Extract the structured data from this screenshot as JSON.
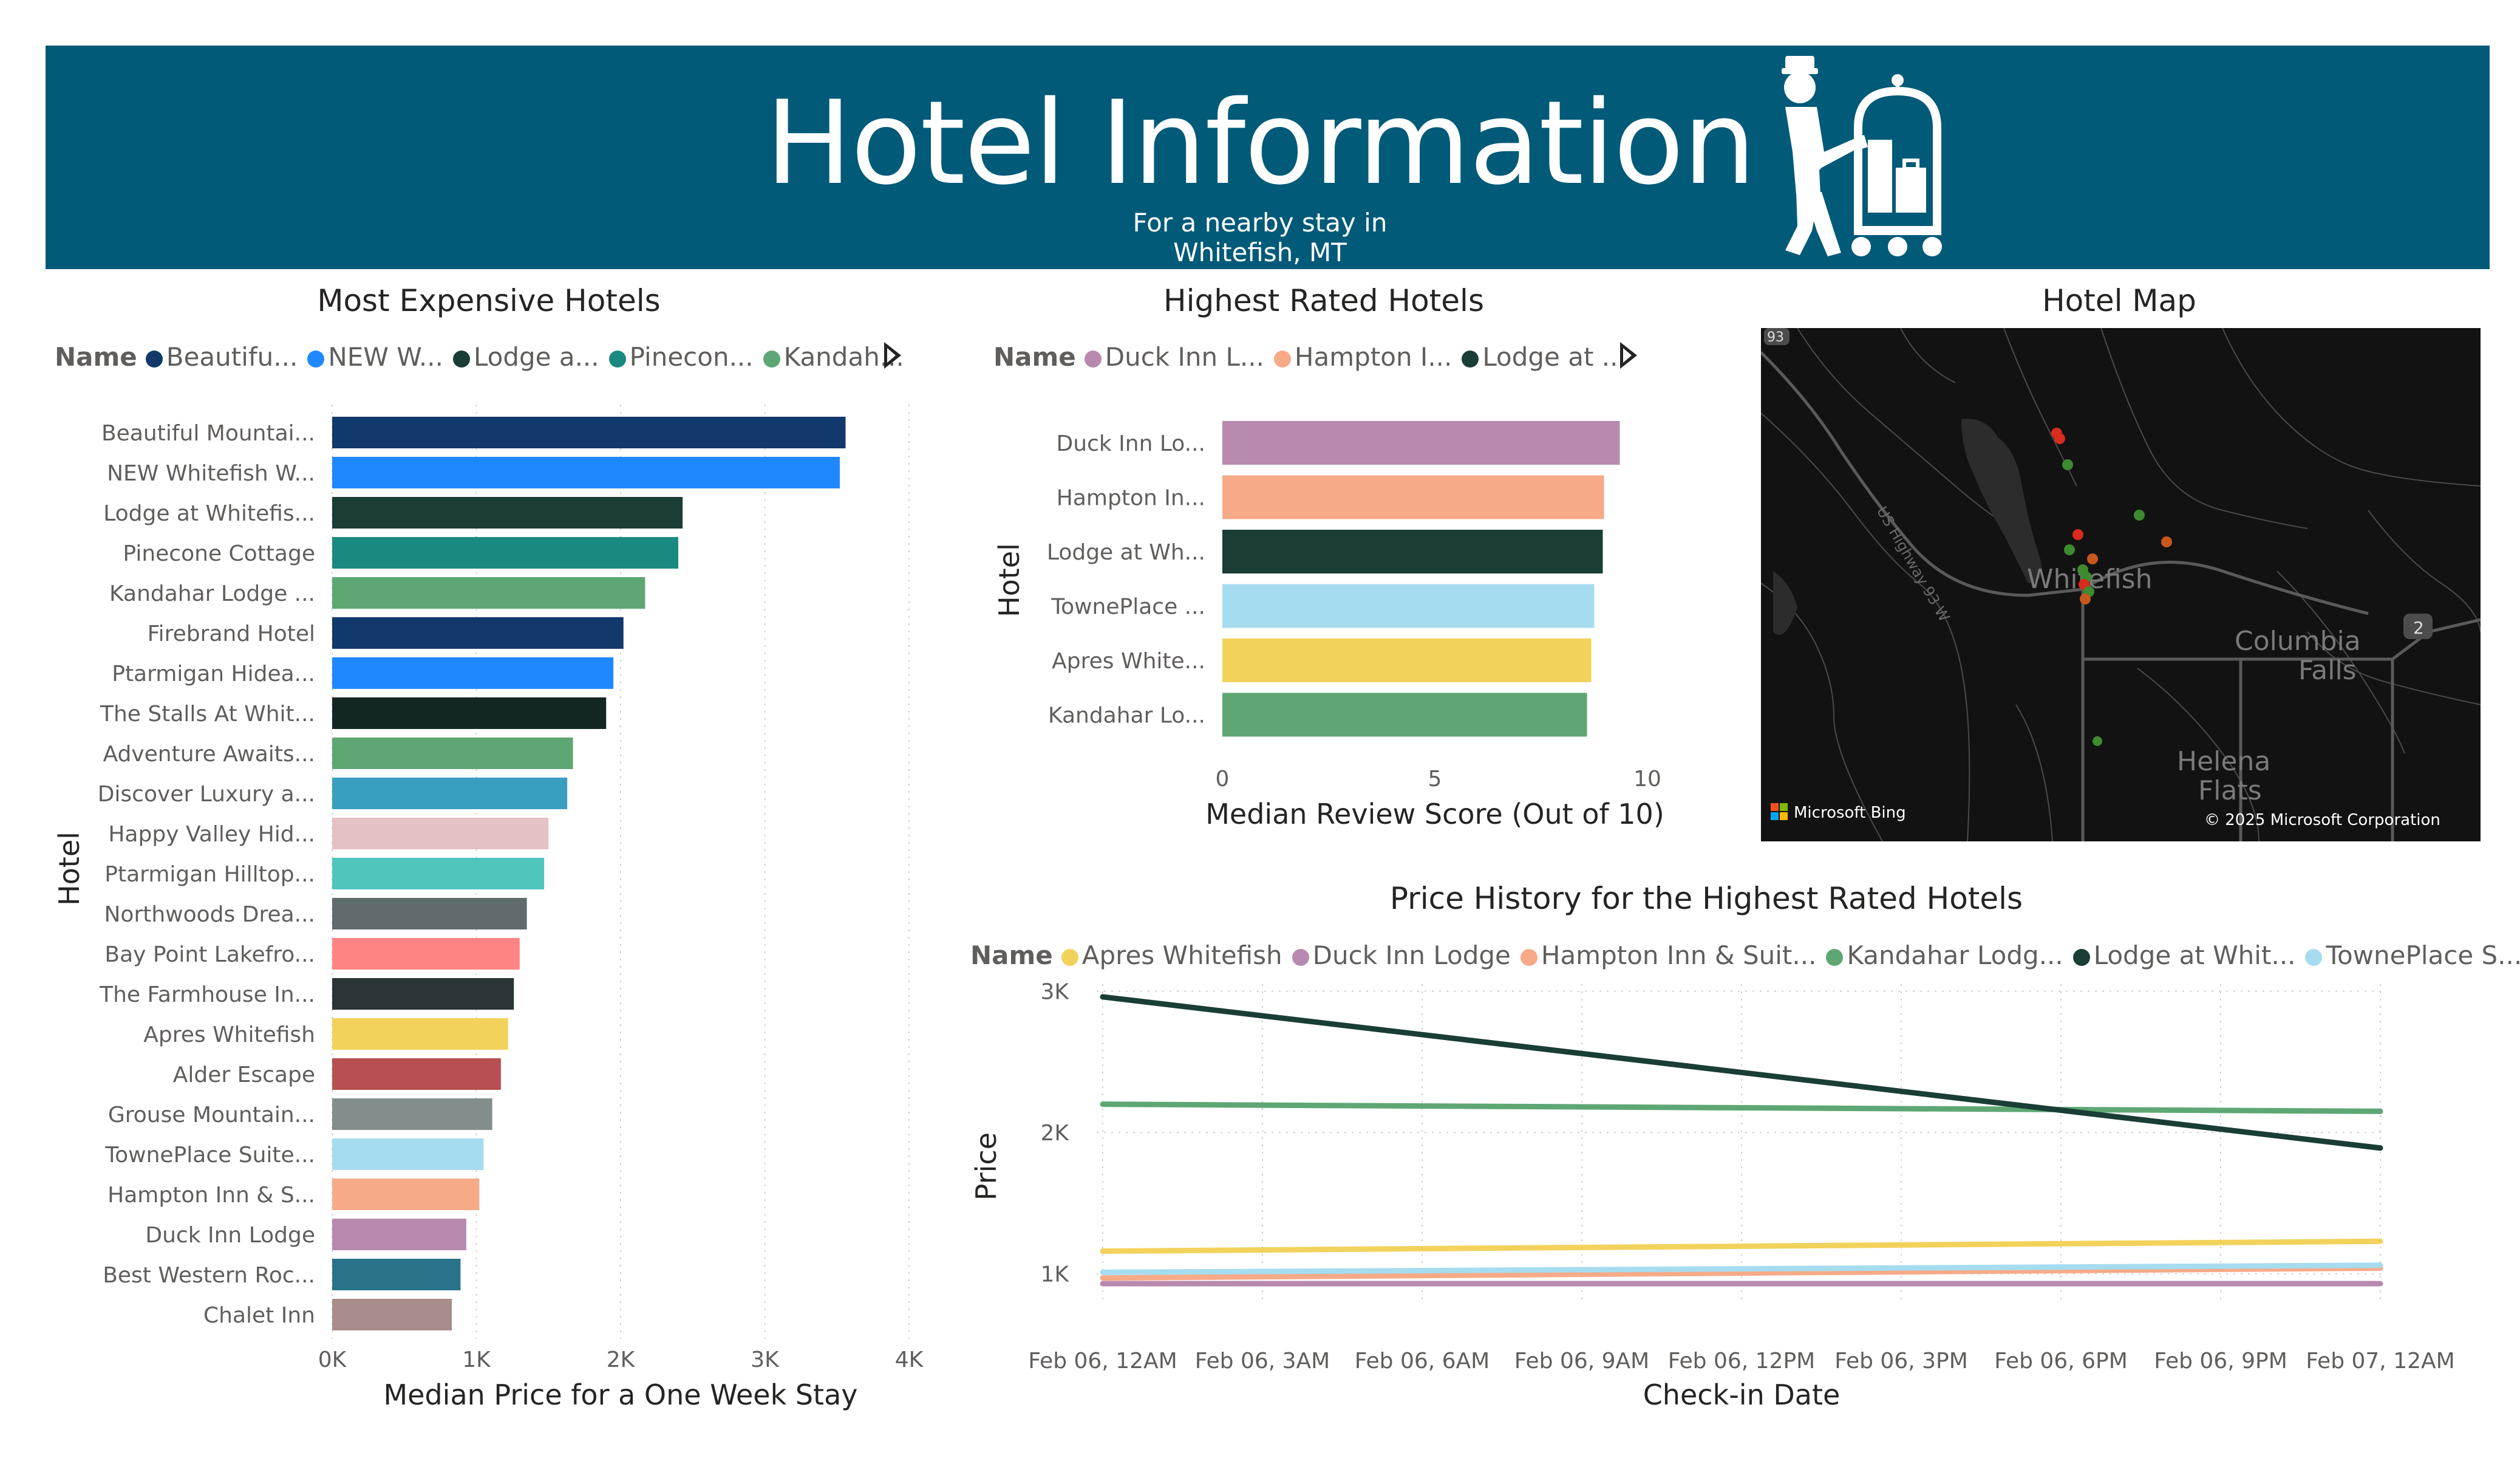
{
  "header": {
    "title": "Hotel Information",
    "subtitle": "For a nearby stay in Whitefish, MT",
    "background_color": "#005a78",
    "icon": "bellhop-luggage-cart-icon"
  },
  "expensive": {
    "title": "Most Expensive Hotels",
    "legend_label": "Name",
    "legend": [
      {
        "label": "Beautifu...",
        "color": "#12396b"
      },
      {
        "label": "NEW W...",
        "color": "#2088ff"
      },
      {
        "label": "Lodge a...",
        "color": "#1a3d35"
      },
      {
        "label": "Pinecon...",
        "color": "#1a8a80"
      },
      {
        "label": "Kandah...",
        "color": "#5ea774"
      }
    ]
  },
  "rated": {
    "title": "Highest Rated Hotels",
    "legend_label": "Name",
    "legend": [
      {
        "label": "Duck Inn L...",
        "color": "#b889ae"
      },
      {
        "label": "Hampton I...",
        "color": "#f7aa88"
      },
      {
        "label": "Lodge at ...",
        "color": "#1a3d35"
      }
    ]
  },
  "map": {
    "title": "Hotel Map",
    "labels": {
      "whitefish": "Whitefish",
      "columbia": "Columbia",
      "falls": "Falls",
      "helena": "Helena",
      "flats": "Flats",
      "highway": "US Highway 93 W",
      "route_2": "2",
      "route_93": "93"
    },
    "attribution": "Microsoft Bing",
    "copyright": "© 2025 Microsoft Corporation",
    "marker_colors": [
      "#d92b1e",
      "#3d8b2e",
      "#c8571c"
    ]
  },
  "history": {
    "title": "Price History for the Highest Rated Hotels",
    "legend_label": "Name",
    "legend": [
      {
        "label": "Apres Whitefish",
        "color": "#f3d25c"
      },
      {
        "label": "Duck Inn Lodge",
        "color": "#b889ae"
      },
      {
        "label": "Hampton Inn & Suit...",
        "color": "#f7aa88"
      },
      {
        "label": "Kandahar Lodg...",
        "color": "#5ea774"
      },
      {
        "label": "Lodge at Whit...",
        "color": "#1a3d35"
      },
      {
        "label": "TownePlace S...",
        "color": "#a6dcef"
      }
    ]
  },
  "chart_data": [
    {
      "id": "expensive",
      "type": "bar",
      "orientation": "horizontal",
      "title": "Most Expensive Hotels",
      "xlabel": "Median Price for a One Week Stay",
      "ylabel": "Hotel",
      "xlim": [
        0,
        4000
      ],
      "xticks": [
        0,
        1000,
        2000,
        3000,
        4000
      ],
      "xtick_labels": [
        "0K",
        "1K",
        "2K",
        "3K",
        "4K"
      ],
      "grid": true,
      "categories": [
        "Beautiful Mountai...",
        "NEW Whitefish W...",
        "Lodge at Whitefis...",
        "Pinecone Cottage",
        "Kandahar Lodge ...",
        "Firebrand Hotel",
        "Ptarmigan Hidea...",
        "The Stalls At Whit...",
        "Adventure Awaits...",
        "Discover Luxury a...",
        "Happy Valley Hid...",
        "Ptarmigan Hilltop...",
        "Northwoods Drea...",
        "Bay Point Lakefro...",
        "The Farmhouse In...",
        "Apres Whitefish",
        "Alder Escape",
        "Grouse Mountain...",
        "TownePlace Suite...",
        "Hampton Inn & S...",
        "Duck Inn Lodge",
        "Best Western Roc...",
        "Chalet Inn"
      ],
      "values": [
        3560,
        3520,
        2430,
        2400,
        2170,
        2020,
        1950,
        1900,
        1670,
        1630,
        1500,
        1470,
        1350,
        1300,
        1260,
        1220,
        1170,
        1110,
        1050,
        1020,
        930,
        890,
        830
      ],
      "colors": [
        "#12396b",
        "#2088ff",
        "#1a3d35",
        "#1a8a80",
        "#5ea774",
        "#12396b",
        "#2088ff",
        "#122724",
        "#5ea774",
        "#3a9ec0",
        "#e3c1c4",
        "#4ec6bb",
        "#5f6b6d",
        "#fd8484",
        "#2b3436",
        "#f3d25c",
        "#b84f50",
        "#838e8c",
        "#a6dcef",
        "#f7aa88",
        "#b889ae",
        "#28738a",
        "#a88d8b"
      ]
    },
    {
      "id": "rated",
      "type": "bar",
      "orientation": "horizontal",
      "title": "Highest Rated Hotels",
      "xlabel": "Median Review Score (Out of 10)",
      "ylabel": "Hotel",
      "xlim": [
        0,
        10
      ],
      "xticks": [
        0,
        5,
        10
      ],
      "xtick_labels": [
        "0",
        "5",
        "10"
      ],
      "grid": false,
      "categories": [
        "Duck Inn Lo...",
        "Hampton In...",
        "Lodge at Wh...",
        "TownePlace ...",
        "Apres White...",
        "Kandahar Lo..."
      ],
      "values": [
        9.35,
        8.98,
        8.95,
        8.75,
        8.68,
        8.58
      ],
      "colors": [
        "#b889ae",
        "#f7aa88",
        "#1a3d35",
        "#a6dcef",
        "#f3d25c",
        "#5ea774"
      ]
    },
    {
      "id": "history",
      "type": "line",
      "title": "Price History for the Highest Rated Hotels",
      "xlabel": "Check-in Date",
      "ylabel": "Price",
      "x": [
        "Feb 06, 12AM",
        "Feb 07, 12AM"
      ],
      "xtick_labels": [
        "Feb 06, 12AM",
        "Feb 06, 3AM",
        "Feb 06, 6AM",
        "Feb 06, 9AM",
        "Feb 06, 12PM",
        "Feb 06, 3PM",
        "Feb 06, 6PM",
        "Feb 06, 9PM",
        "Feb 07, 12AM"
      ],
      "ylim": [
        900,
        3050
      ],
      "yticks": [
        1000,
        2000,
        3000
      ],
      "ytick_labels": [
        "1K",
        "2K",
        "3K"
      ],
      "grid": true,
      "series": [
        {
          "name": "Apres Whitefish",
          "values": [
            1160,
            1230
          ],
          "color": "#f3d25c"
        },
        {
          "name": "Duck Inn Lodge",
          "values": [
            930,
            930
          ],
          "color": "#b889ae"
        },
        {
          "name": "Hampton Inn & Suit...",
          "values": [
            970,
            1040
          ],
          "color": "#f7aa88"
        },
        {
          "name": "Kandahar Lodg...",
          "values": [
            2200,
            2150
          ],
          "color": "#5ea774"
        },
        {
          "name": "Lodge at Whit...",
          "values": [
            2960,
            1890
          ],
          "color": "#1a3d35"
        },
        {
          "name": "TownePlace S...",
          "values": [
            1010,
            1060
          ],
          "color": "#a6dcef"
        }
      ]
    }
  ]
}
